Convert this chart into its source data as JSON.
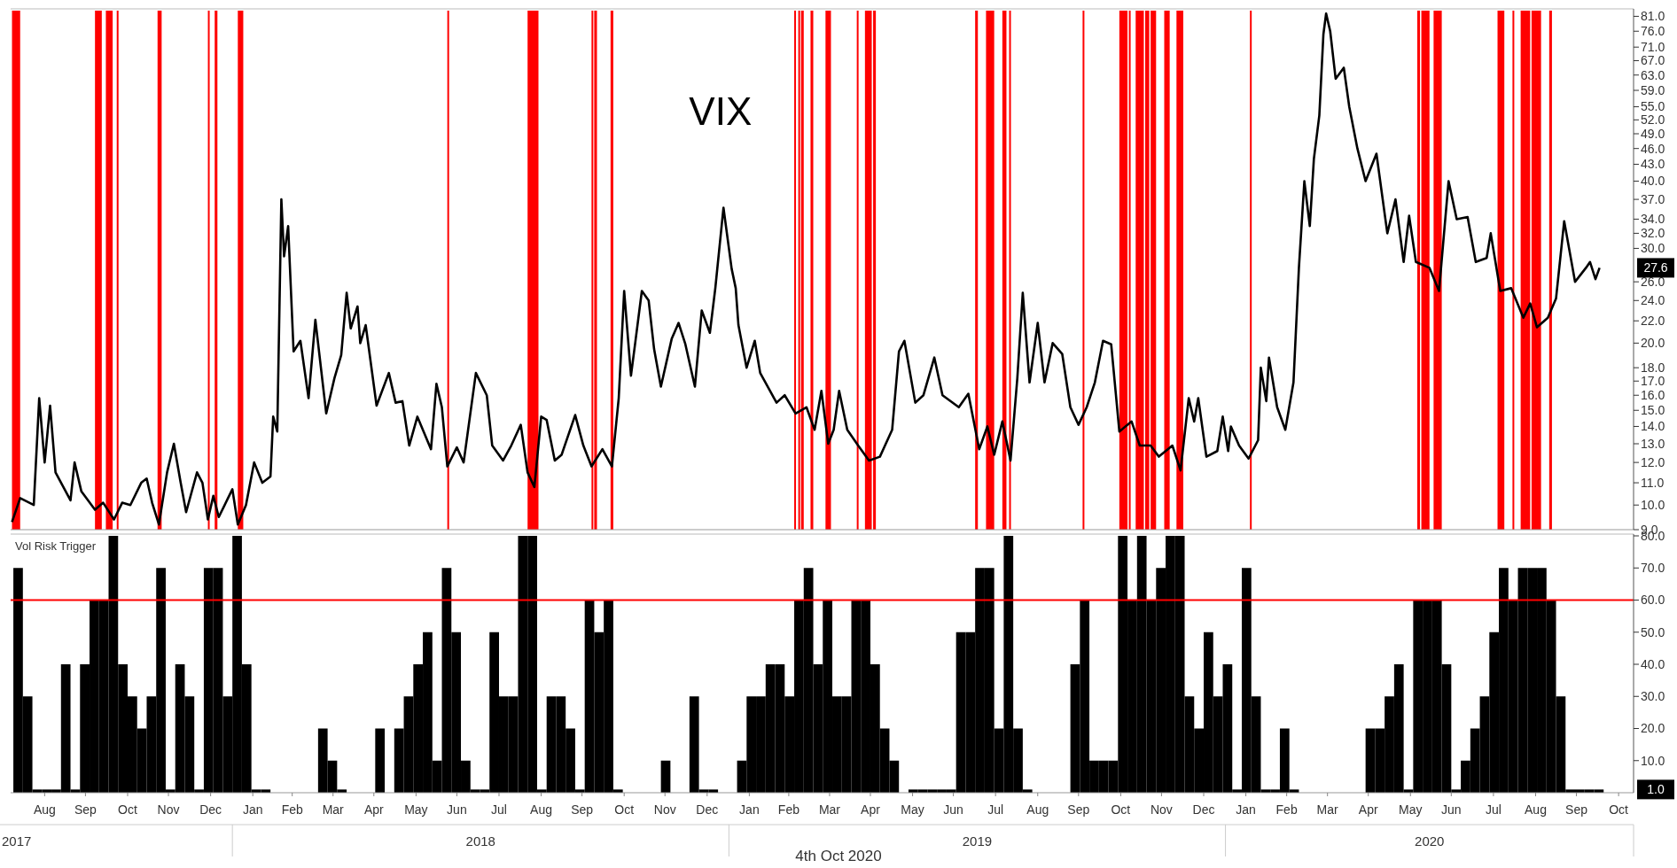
{
  "chart_data": [
    {
      "type": "line",
      "log": true,
      "tick_labels": "y",
      "color": "#000000",
      "xlim": [
        "2017-07-22",
        "2020-10-27"
      ],
      "ylim": [
        9,
        83
      ],
      "yticks": [
        {
          "value": 9,
          "label": "9.0"
        },
        {
          "value": 10,
          "label": "10.0"
        },
        {
          "value": 11,
          "label": "11.0"
        },
        {
          "value": 12,
          "label": "12.0"
        },
        {
          "value": 13,
          "label": "13.0"
        },
        {
          "value": 14,
          "label": "14.0"
        },
        {
          "value": 15,
          "label": "15.0"
        },
        {
          "value": 16,
          "label": "16.0"
        },
        {
          "value": 17,
          "label": "17.0"
        },
        {
          "value": 18,
          "label": "18.0"
        },
        {
          "value": 20,
          "label": "20.0"
        },
        {
          "value": 22,
          "label": "22.0"
        },
        {
          "value": 24,
          "label": "24.0"
        },
        {
          "value": 26,
          "label": "26.0"
        },
        {
          "value": 30,
          "label": "30.0"
        },
        {
          "value": 32,
          "label": "32.0"
        },
        {
          "value": 34,
          "label": "34.0"
        },
        {
          "value": 37,
          "label": "37.0"
        },
        {
          "value": 40,
          "label": "40.0"
        },
        {
          "value": 43,
          "label": "43.0"
        },
        {
          "value": 46,
          "label": "46.0"
        },
        {
          "value": 49,
          "label": "49.0"
        },
        {
          "value": 52,
          "label": "52.0"
        },
        {
          "value": 55,
          "label": "55.0"
        },
        {
          "value": 59,
          "label": "59.0"
        },
        {
          "value": 63,
          "label": "63.0"
        },
        {
          "value": 67,
          "label": "67.0"
        },
        {
          "value": 71,
          "label": "71.0"
        },
        {
          "value": 76,
          "label": "76.0"
        },
        {
          "value": 81,
          "label": "81.0"
        }
      ],
      "x": [
        "2017-07-23",
        "2017-07-29",
        "2017-08-08",
        "2017-08-12",
        "2017-08-16",
        "2017-08-20",
        "2017-08-24",
        "2017-09-04",
        "2017-09-07",
        "2017-09-12",
        "2017-09-22",
        "2017-09-28",
        "2017-10-06",
        "2017-10-12",
        "2017-10-18",
        "2017-10-26",
        "2017-10-30",
        "2017-11-03",
        "2017-11-08",
        "2017-11-14",
        "2017-11-19",
        "2017-11-24",
        "2017-11-28",
        "2017-12-06",
        "2017-12-10",
        "2017-12-14",
        "2017-12-18",
        "2017-12-22",
        "2018-01-01",
        "2018-01-05",
        "2018-01-11",
        "2018-01-17",
        "2018-01-23",
        "2018-01-29",
        "2018-01-31",
        "2018-02-03",
        "2018-02-06",
        "2018-02-08",
        "2018-02-11",
        "2018-02-15",
        "2018-02-20",
        "2018-02-26",
        "2018-03-03",
        "2018-03-11",
        "2018-03-17",
        "2018-03-22",
        "2018-03-26",
        "2018-03-29",
        "2018-04-03",
        "2018-04-05",
        "2018-04-09",
        "2018-04-17",
        "2018-04-26",
        "2018-05-01",
        "2018-05-06",
        "2018-05-11",
        "2018-05-17",
        "2018-05-27",
        "2018-05-31",
        "2018-06-04",
        "2018-06-08",
        "2018-06-15",
        "2018-06-20",
        "2018-06-29",
        "2018-07-07",
        "2018-07-11",
        "2018-07-19",
        "2018-07-25",
        "2018-08-01",
        "2018-08-06",
        "2018-08-11",
        "2018-08-16",
        "2018-08-20",
        "2018-08-26",
        "2018-08-31",
        "2018-09-10",
        "2018-09-16",
        "2018-09-22",
        "2018-09-30",
        "2018-10-07",
        "2018-10-12",
        "2018-10-16",
        "2018-10-21",
        "2018-10-24",
        "2018-10-29",
        "2018-11-03",
        "2018-11-07",
        "2018-11-12",
        "2018-11-20",
        "2018-11-25",
        "2018-11-30",
        "2018-12-07",
        "2018-12-12",
        "2018-12-18",
        "2018-12-22",
        "2018-12-28",
        "2019-01-03",
        "2019-01-06",
        "2019-01-08",
        "2019-01-14",
        "2019-01-20",
        "2019-01-24",
        "2019-02-05",
        "2019-02-11",
        "2019-02-19",
        "2019-02-27",
        "2019-03-05",
        "2019-03-10",
        "2019-03-15",
        "2019-03-19",
        "2019-03-23",
        "2019-03-29",
        "2019-04-06",
        "2019-04-14",
        "2019-04-22",
        "2019-05-01",
        "2019-05-06",
        "2019-05-10",
        "2019-05-18",
        "2019-05-24",
        "2019-06-01",
        "2019-06-07",
        "2019-06-19",
        "2019-06-26",
        "2019-07-04",
        "2019-07-10",
        "2019-07-15",
        "2019-07-21",
        "2019-07-27",
        "2019-08-01",
        "2019-08-05",
        "2019-08-10",
        "2019-08-16",
        "2019-08-21",
        "2019-08-27",
        "2019-09-03",
        "2019-09-09",
        "2019-09-15",
        "2019-09-21",
        "2019-09-27",
        "2019-10-03",
        "2019-10-09",
        "2019-10-15",
        "2019-10-24",
        "2019-10-30",
        "2019-11-07",
        "2019-11-13",
        "2019-11-23",
        "2019-11-29",
        "2019-12-05",
        "2019-12-09",
        "2019-12-12",
        "2019-12-18",
        "2019-12-26",
        "2019-12-30",
        "2020-01-03",
        "2020-01-05",
        "2020-01-11",
        "2020-01-18",
        "2020-01-25",
        "2020-01-27",
        "2020-01-31",
        "2020-02-02",
        "2020-02-08",
        "2020-02-14",
        "2020-02-20",
        "2020-02-24",
        "2020-02-28",
        "2020-03-03",
        "2020-03-06",
        "2020-03-10",
        "2020-03-13",
        "2020-03-15",
        "2020-03-18",
        "2020-03-22",
        "2020-03-28",
        "2020-04-01",
        "2020-04-07",
        "2020-04-13",
        "2020-04-21",
        "2020-04-29",
        "2020-05-05",
        "2020-05-11",
        "2020-05-15",
        "2020-05-20",
        "2020-05-30",
        "2020-06-06",
        "2020-06-13",
        "2020-06-19",
        "2020-06-27",
        "2020-07-03",
        "2020-07-11",
        "2020-07-14",
        "2020-07-21",
        "2020-07-29",
        "2020-08-07",
        "2020-08-12",
        "2020-08-17",
        "2020-08-25",
        "2020-08-31",
        "2020-09-06",
        "2020-09-14",
        "2020-09-22",
        "2020-09-25",
        "2020-09-29",
        "2020-10-02"
      ],
      "values": [
        9.3,
        10.3,
        10.0,
        15.8,
        12.0,
        15.3,
        11.5,
        10.2,
        12.0,
        10.6,
        9.8,
        10.1,
        9.4,
        10.1,
        10.0,
        11.0,
        11.2,
        10.1,
        9.2,
        11.5,
        13.0,
        11.0,
        9.7,
        11.5,
        11.0,
        9.4,
        10.4,
        9.5,
        10.7,
        9.2,
        10.0,
        12.0,
        11.0,
        11.3,
        14.6,
        13.7,
        37,
        29,
        33,
        19.3,
        20.2,
        15.8,
        22.1,
        14.8,
        17.2,
        19.0,
        24.8,
        21.3,
        23.4,
        20.0,
        21.6,
        15.3,
        17.6,
        15.5,
        15.6,
        12.9,
        14.6,
        12.7,
        16.8,
        15.2,
        11.8,
        12.8,
        12.0,
        17.6,
        16.0,
        12.9,
        12.1,
        12.9,
        14.1,
        11.5,
        10.8,
        14.6,
        14.4,
        12.1,
        12.4,
        14.7,
        12.9,
        11.8,
        12.7,
        11.8,
        15.8,
        25,
        17.4,
        19.9,
        25,
        24,
        19.5,
        16.6,
        20.4,
        21.8,
        19.9,
        16.6,
        23,
        20.9,
        25.3,
        35.7,
        27.5,
        25.3,
        21.6,
        18,
        20.2,
        17.6,
        15.5,
        16,
        14.8,
        15.2,
        13.8,
        16.3,
        13.0,
        13.8,
        16.3,
        13.8,
        12.9,
        12.1,
        12.3,
        13.8,
        19.3,
        20.2,
        15.5,
        16,
        18.8,
        16,
        15.2,
        16.1,
        12.7,
        14,
        12.4,
        14.3,
        12.1,
        17.2,
        24.8,
        16.9,
        21.8,
        16.9,
        20,
        19.1,
        15.2,
        14.1,
        15.2,
        16.9,
        20.2,
        19.9,
        13.7,
        14.3,
        12.9,
        12.9,
        12.3,
        12.9,
        11.6,
        15.8,
        14.3,
        15.8,
        12.3,
        12.6,
        14.6,
        12.6,
        14.0,
        12.9,
        12.2,
        13.2,
        18,
        15.6,
        18.8,
        15.2,
        13.8,
        16.9,
        27.6,
        40,
        33,
        44,
        53,
        75,
        82,
        76,
        62,
        65,
        55,
        46,
        40,
        45,
        32,
        37,
        28.3,
        34.5,
        28.3,
        27.6,
        25,
        40,
        34,
        34.3,
        28.3,
        28.8,
        32,
        25,
        25.3,
        22.3,
        23.7,
        21.4,
        22.3,
        24.2,
        33.7,
        26,
        27.6,
        28.3,
        26.3,
        27.6
      ],
      "bands": [
        {
          "axis": "x",
          "from": "2017-07-23",
          "to": "2017-07-29",
          "color": "#ff0000"
        },
        {
          "axis": "x",
          "from": "2017-09-22",
          "to": "2017-09-27",
          "color": "#ff0000"
        },
        {
          "axis": "x",
          "from": "2017-09-30",
          "to": "2017-10-05",
          "color": "#ff0000"
        },
        {
          "axis": "x",
          "from": "2017-10-08",
          "to": "2017-10-09",
          "color": "#ff0000"
        },
        {
          "axis": "x",
          "from": "2017-11-07",
          "to": "2017-11-10",
          "color": "#ff0000"
        },
        {
          "axis": "x",
          "from": "2017-12-14",
          "to": "2017-12-15",
          "color": "#ff0000"
        },
        {
          "axis": "x",
          "from": "2017-12-19",
          "to": "2017-12-21",
          "color": "#ff0000"
        },
        {
          "axis": "x",
          "from": "2018-01-05",
          "to": "2018-01-09",
          "color": "#ff0000"
        },
        {
          "axis": "x",
          "from": "2018-06-08",
          "to": "2018-06-09",
          "color": "#ff0000"
        },
        {
          "axis": "x",
          "from": "2018-08-06",
          "to": "2018-08-14",
          "color": "#ff0000"
        },
        {
          "axis": "x",
          "from": "2018-09-22",
          "to": "2018-09-23",
          "color": "#ff0000"
        },
        {
          "axis": "x",
          "from": "2018-09-24",
          "to": "2018-09-26",
          "color": "#ff0000"
        },
        {
          "axis": "x",
          "from": "2018-10-06",
          "to": "2018-10-08",
          "color": "#ff0000"
        },
        {
          "axis": "x",
          "from": "2019-02-18",
          "to": "2019-02-19",
          "color": "#ff0000"
        },
        {
          "axis": "x",
          "from": "2019-02-21",
          "to": "2019-02-22",
          "color": "#ff0000"
        },
        {
          "axis": "x",
          "from": "2019-02-23",
          "to": "2019-02-25",
          "color": "#ff0000"
        },
        {
          "axis": "x",
          "from": "2019-03-02",
          "to": "2019-03-04",
          "color": "#ff0000"
        },
        {
          "axis": "x",
          "from": "2019-03-13",
          "to": "2019-03-17",
          "color": "#ff0000"
        },
        {
          "axis": "x",
          "from": "2019-04-05",
          "to": "2019-04-06",
          "color": "#ff0000"
        },
        {
          "axis": "x",
          "from": "2019-04-11",
          "to": "2019-04-16",
          "color": "#ff0000"
        },
        {
          "axis": "x",
          "from": "2019-04-17",
          "to": "2019-04-19",
          "color": "#ff0000"
        },
        {
          "axis": "x",
          "from": "2019-07-01",
          "to": "2019-07-03",
          "color": "#ff0000"
        },
        {
          "axis": "x",
          "from": "2019-07-09",
          "to": "2019-07-15",
          "color": "#ff0000"
        },
        {
          "axis": "x",
          "from": "2019-07-21",
          "to": "2019-07-24",
          "color": "#ff0000"
        },
        {
          "axis": "x",
          "from": "2019-07-26",
          "to": "2019-07-27",
          "color": "#ff0000"
        },
        {
          "axis": "x",
          "from": "2019-09-18",
          "to": "2019-09-19",
          "color": "#ff0000"
        },
        {
          "axis": "x",
          "from": "2019-10-15",
          "to": "2019-10-21",
          "color": "#ff0000"
        },
        {
          "axis": "x",
          "from": "2019-10-22",
          "to": "2019-10-23",
          "color": "#ff0000"
        },
        {
          "axis": "x",
          "from": "2019-10-27",
          "to": "2019-11-02",
          "color": "#ff0000"
        },
        {
          "axis": "x",
          "from": "2019-11-03",
          "to": "2019-11-06",
          "color": "#ff0000"
        },
        {
          "axis": "x",
          "from": "2019-11-07",
          "to": "2019-11-11",
          "color": "#ff0000"
        },
        {
          "axis": "x",
          "from": "2019-11-17",
          "to": "2019-11-21",
          "color": "#ff0000"
        },
        {
          "axis": "x",
          "from": "2019-11-26",
          "to": "2019-12-01",
          "color": "#ff0000"
        },
        {
          "axis": "x",
          "from": "2020-01-19",
          "to": "2020-01-20",
          "color": "#ff0000"
        },
        {
          "axis": "x",
          "from": "2020-05-21",
          "to": "2020-05-23",
          "color": "#ff0000"
        },
        {
          "axis": "x",
          "from": "2020-05-24",
          "to": "2020-05-30",
          "color": "#ff0000"
        },
        {
          "axis": "x",
          "from": "2020-06-02",
          "to": "2020-06-08",
          "color": "#ff0000"
        },
        {
          "axis": "x",
          "from": "2020-07-19",
          "to": "2020-07-24",
          "color": "#ff0000"
        },
        {
          "axis": "x",
          "from": "2020-07-30",
          "to": "2020-07-31",
          "color": "#ff0000"
        },
        {
          "axis": "x",
          "from": "2020-08-05",
          "to": "2020-08-12",
          "color": "#ff0000"
        },
        {
          "axis": "x",
          "from": "2020-08-13",
          "to": "2020-08-20",
          "color": "#ff0000"
        },
        {
          "axis": "x",
          "from": "2020-08-26",
          "to": "2020-08-28",
          "color": "#ff0000"
        }
      ],
      "annotations": [
        "VIX",
        "27.6"
      ]
    },
    {
      "type": "bar",
      "title": "Vol Risk Trigger",
      "color": "#000000",
      "xlim": [
        "2017-07-22",
        "2020-10-27"
      ],
      "ylim": [
        0,
        80
      ],
      "yticks": [
        {
          "value": 10,
          "label": "10.0"
        },
        {
          "value": 20,
          "label": "20.0"
        },
        {
          "value": 30,
          "label": "30.0"
        },
        {
          "value": 40,
          "label": "40.0"
        },
        {
          "value": 50,
          "label": "50.0"
        },
        {
          "value": 60,
          "label": "60.0"
        },
        {
          "value": 70,
          "label": "70.0"
        },
        {
          "value": 80,
          "label": "80.0"
        }
      ],
      "xticks": [
        {
          "value": "2017-08-16",
          "label": "Aug"
        },
        {
          "value": "2017-09-15",
          "label": "Sep"
        },
        {
          "value": "2017-10-16",
          "label": "Oct"
        },
        {
          "value": "2017-11-15",
          "label": "Nov"
        },
        {
          "value": "2017-12-16",
          "label": "Dec"
        },
        {
          "value": "2018-01-16",
          "label": "Jan"
        },
        {
          "value": "2018-02-14",
          "label": "Feb"
        },
        {
          "value": "2018-03-16",
          "label": "Mar"
        },
        {
          "value": "2018-04-15",
          "label": "Apr"
        },
        {
          "value": "2018-05-16",
          "label": "May"
        },
        {
          "value": "2018-06-15",
          "label": "Jun"
        },
        {
          "value": "2018-07-16",
          "label": "Jul"
        },
        {
          "value": "2018-08-16",
          "label": "Aug"
        },
        {
          "value": "2018-09-15",
          "label": "Sep"
        },
        {
          "value": "2018-10-16",
          "label": "Oct"
        },
        {
          "value": "2018-11-15",
          "label": "Nov"
        },
        {
          "value": "2018-12-16",
          "label": "Dec"
        },
        {
          "value": "2019-01-16",
          "label": "Jan"
        },
        {
          "value": "2019-02-14",
          "label": "Feb"
        },
        {
          "value": "2019-03-16",
          "label": "Mar"
        },
        {
          "value": "2019-04-15",
          "label": "Apr"
        },
        {
          "value": "2019-05-16",
          "label": "May"
        },
        {
          "value": "2019-06-15",
          "label": "Jun"
        },
        {
          "value": "2019-07-16",
          "label": "Jul"
        },
        {
          "value": "2019-08-16",
          "label": "Aug"
        },
        {
          "value": "2019-09-15",
          "label": "Sep"
        },
        {
          "value": "2019-10-16",
          "label": "Oct"
        },
        {
          "value": "2019-11-15",
          "label": "Nov"
        },
        {
          "value": "2019-12-16",
          "label": "Dec"
        },
        {
          "value": "2020-01-16",
          "label": "Jan"
        },
        {
          "value": "2020-02-15",
          "label": "Feb"
        },
        {
          "value": "2020-03-16",
          "label": "Mar"
        },
        {
          "value": "2020-04-15",
          "label": "Apr"
        },
        {
          "value": "2020-05-16",
          "label": "May"
        },
        {
          "value": "2020-06-15",
          "label": "Jun"
        },
        {
          "value": "2020-07-16",
          "label": "Jul"
        },
        {
          "value": "2020-08-16",
          "label": "Aug"
        },
        {
          "value": "2020-09-15",
          "label": "Sep"
        },
        {
          "value": "2020-10-16",
          "label": "Oct"
        }
      ],
      "x": [
        "2017-07-24",
        "2017-07-31",
        "2017-08-07",
        "2017-08-14",
        "2017-08-21",
        "2017-08-28",
        "2017-09-04",
        "2017-09-11",
        "2017-09-18",
        "2017-09-25",
        "2017-10-02",
        "2017-10-09",
        "2017-10-16",
        "2017-10-23",
        "2017-10-30",
        "2017-11-06",
        "2017-11-13",
        "2017-11-20",
        "2017-11-27",
        "2017-12-04",
        "2017-12-11",
        "2017-12-18",
        "2017-12-25",
        "2018-01-01",
        "2018-01-08",
        "2018-01-15",
        "2018-01-22",
        "2018-01-29",
        "2018-02-05",
        "2018-02-12",
        "2018-02-19",
        "2018-02-26",
        "2018-03-05",
        "2018-03-12",
        "2018-03-19",
        "2018-03-26",
        "2018-04-02",
        "2018-04-09",
        "2018-04-16",
        "2018-04-23",
        "2018-04-30",
        "2018-05-07",
        "2018-05-14",
        "2018-05-21",
        "2018-05-28",
        "2018-06-04",
        "2018-06-11",
        "2018-06-18",
        "2018-06-25",
        "2018-07-02",
        "2018-07-09",
        "2018-07-16",
        "2018-07-23",
        "2018-07-30",
        "2018-08-06",
        "2018-08-13",
        "2018-08-20",
        "2018-08-27",
        "2018-09-03",
        "2018-09-10",
        "2018-09-17",
        "2018-09-24",
        "2018-10-01",
        "2018-10-08",
        "2018-10-15",
        "2018-10-22",
        "2018-10-29",
        "2018-11-05",
        "2018-11-12",
        "2018-11-19",
        "2018-11-26",
        "2018-12-03",
        "2018-12-10",
        "2018-12-17",
        "2018-12-24",
        "2018-12-31",
        "2019-01-07",
        "2019-01-14",
        "2019-01-21",
        "2019-01-28",
        "2019-02-04",
        "2019-02-11",
        "2019-02-18",
        "2019-02-25",
        "2019-03-04",
        "2019-03-11",
        "2019-03-18",
        "2019-03-25",
        "2019-04-01",
        "2019-04-08",
        "2019-04-15",
        "2019-04-22",
        "2019-04-29",
        "2019-05-06",
        "2019-05-13",
        "2019-05-20",
        "2019-05-27",
        "2019-06-03",
        "2019-06-10",
        "2019-06-17",
        "2019-06-24",
        "2019-07-01",
        "2019-07-08",
        "2019-07-15",
        "2019-07-22",
        "2019-07-29",
        "2019-08-05",
        "2019-08-12",
        "2019-08-19",
        "2019-08-26",
        "2019-09-02",
        "2019-09-09",
        "2019-09-16",
        "2019-09-23",
        "2019-09-30",
        "2019-10-07",
        "2019-10-14",
        "2019-10-21",
        "2019-10-28",
        "2019-11-04",
        "2019-11-11",
        "2019-11-18",
        "2019-11-25",
        "2019-12-02",
        "2019-12-09",
        "2019-12-16",
        "2019-12-23",
        "2019-12-30",
        "2020-01-06",
        "2020-01-13",
        "2020-01-20",
        "2020-01-27",
        "2020-02-03",
        "2020-02-10",
        "2020-02-17",
        "2020-02-24",
        "2020-03-02",
        "2020-03-09",
        "2020-03-16",
        "2020-03-23",
        "2020-03-30",
        "2020-04-06",
        "2020-04-13",
        "2020-04-20",
        "2020-04-27",
        "2020-05-04",
        "2020-05-11",
        "2020-05-18",
        "2020-05-25",
        "2020-06-01",
        "2020-06-08",
        "2020-06-15",
        "2020-06-22",
        "2020-06-29",
        "2020-07-06",
        "2020-07-13",
        "2020-07-20",
        "2020-07-27",
        "2020-08-03",
        "2020-08-10",
        "2020-08-17",
        "2020-08-24",
        "2020-08-31",
        "2020-09-07",
        "2020-09-14",
        "2020-09-21",
        "2020-09-28"
      ],
      "values": [
        70,
        30,
        1,
        1,
        1,
        40,
        1,
        40,
        60,
        60,
        80,
        40,
        30,
        20,
        30,
        70,
        1,
        40,
        30,
        1,
        70,
        70,
        30,
        80,
        40,
        1,
        1,
        0,
        0,
        0,
        0,
        0,
        20,
        10,
        1,
        0,
        0,
        0,
        20,
        0,
        20,
        30,
        40,
        50,
        10,
        70,
        50,
        10,
        1,
        1,
        50,
        30,
        30,
        80,
        80,
        1,
        30,
        30,
        20,
        1,
        60,
        50,
        60,
        1,
        0,
        0,
        0,
        0,
        10,
        0,
        0,
        30,
        1,
        1,
        0,
        0,
        10,
        30,
        30,
        40,
        40,
        30,
        60,
        70,
        40,
        60,
        30,
        30,
        60,
        60,
        40,
        20,
        10,
        0,
        1,
        1,
        1,
        1,
        1,
        50,
        50,
        70,
        70,
        20,
        80,
        20,
        1,
        0,
        0,
        0,
        0,
        40,
        60,
        10,
        10,
        10,
        80,
        60,
        80,
        60,
        70,
        80,
        80,
        30,
        20,
        50,
        30,
        40,
        1,
        70,
        30,
        1,
        1,
        20,
        1,
        0,
        0,
        0,
        0,
        0,
        0,
        0,
        20,
        20,
        30,
        40,
        1,
        60,
        60,
        60,
        40,
        1,
        10,
        20,
        30,
        50,
        70,
        60,
        70,
        70,
        70,
        60,
        30,
        1,
        1,
        1,
        1
      ],
      "ref_lines": [
        {
          "axis": "y",
          "value": 60,
          "color": "#ff0000"
        }
      ],
      "annotations": [
        "1.0",
        "2017",
        "2018",
        "2019",
        "2020",
        "4th Oct 2020"
      ]
    }
  ]
}
